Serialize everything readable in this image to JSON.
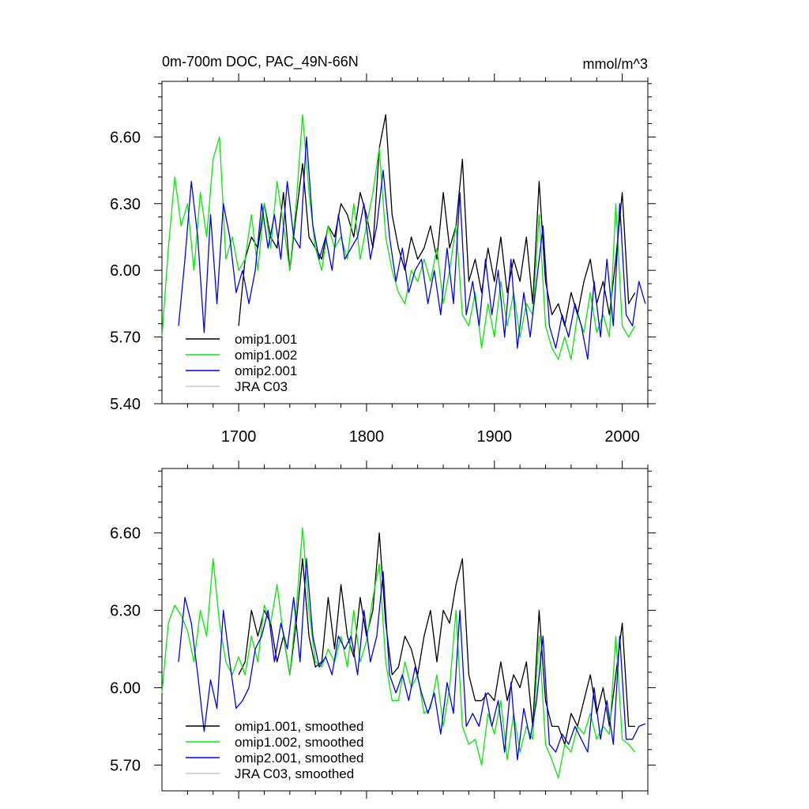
{
  "chart_data": [
    {
      "type": "line",
      "title": "0m-700m DOC, PAC_49N-66N",
      "units": "mmol/m^3",
      "xlabel": "",
      "ylabel": "",
      "xlim": [
        1640,
        2020
      ],
      "ylim": [
        5.4,
        6.85
      ],
      "x_ticks": [
        1700,
        1800,
        1900,
        2000
      ],
      "x_tick_labels": [
        "1700",
        "1800",
        "1900",
        "2000"
      ],
      "y_ticks": [
        5.4,
        5.7,
        6.0,
        6.3,
        6.6
      ],
      "y_tick_labels": [
        "5.40",
        "5.70",
        "6.00",
        "6.30",
        "6.60"
      ],
      "legend_position": "bottom-left",
      "series": [
        {
          "name": "omip1.001",
          "color": "#000000",
          "x": [
            1700,
            1705,
            1710,
            1715,
            1720,
            1725,
            1730,
            1735,
            1740,
            1745,
            1750,
            1755,
            1760,
            1765,
            1770,
            1775,
            1780,
            1785,
            1790,
            1795,
            1800,
            1805,
            1810,
            1815,
            1820,
            1825,
            1830,
            1835,
            1840,
            1845,
            1850,
            1855,
            1860,
            1865,
            1870,
            1875,
            1880,
            1885,
            1890,
            1895,
            1900,
            1905,
            1910,
            1915,
            1920,
            1925,
            1930,
            1935,
            1940,
            1945,
            1950,
            1955,
            1960,
            1965,
            1970,
            1975,
            1980,
            1985,
            1990,
            1995,
            2000,
            2005,
            2010
          ],
          "values": [
            5.75,
            6.05,
            6.15,
            6.1,
            6.3,
            6.15,
            6.1,
            6.35,
            6.0,
            6.25,
            6.48,
            6.15,
            6.1,
            6.05,
            6.2,
            6.15,
            6.3,
            6.25,
            6.15,
            6.35,
            6.25,
            6.1,
            6.55,
            6.7,
            6.25,
            6.1,
            6.0,
            6.15,
            6.05,
            6.1,
            6.2,
            6.05,
            6.35,
            6.1,
            6.2,
            6.5,
            5.95,
            6.05,
            5.9,
            6.1,
            5.95,
            6.15,
            5.9,
            6.05,
            5.95,
            6.15,
            5.85,
            6.4,
            5.95,
            5.8,
            5.85,
            5.75,
            5.9,
            5.8,
            5.95,
            6.05,
            5.85,
            5.95,
            5.8,
            6.05,
            6.35,
            5.85,
            5.9
          ]
        },
        {
          "name": "omip1.002",
          "color": "#00ee00",
          "x": [
            1640,
            1645,
            1650,
            1655,
            1660,
            1665,
            1670,
            1675,
            1680,
            1685,
            1690,
            1695,
            1700,
            1705,
            1710,
            1715,
            1720,
            1725,
            1730,
            1735,
            1740,
            1745,
            1750,
            1755,
            1760,
            1765,
            1770,
            1775,
            1780,
            1785,
            1790,
            1795,
            1800,
            1805,
            1810,
            1815,
            1820,
            1825,
            1830,
            1835,
            1840,
            1845,
            1850,
            1855,
            1860,
            1865,
            1870,
            1875,
            1880,
            1885,
            1890,
            1895,
            1900,
            1905,
            1910,
            1915,
            1920,
            1925,
            1930,
            1935,
            1940,
            1945,
            1950,
            1955,
            1960,
            1965,
            1970,
            1975,
            1980,
            1985,
            1990,
            1995,
            2000,
            2005,
            2010
          ],
          "values": [
            5.7,
            6.1,
            6.42,
            6.2,
            6.3,
            6.0,
            6.35,
            6.15,
            6.5,
            6.6,
            6.05,
            6.15,
            6.0,
            6.05,
            6.25,
            6.0,
            6.3,
            6.1,
            6.4,
            6.2,
            6.0,
            6.3,
            6.7,
            6.35,
            6.1,
            6.0,
            6.2,
            6.1,
            6.15,
            6.05,
            6.3,
            6.05,
            6.2,
            6.35,
            6.55,
            6.15,
            6.0,
            5.9,
            5.85,
            6.0,
            5.95,
            6.05,
            5.95,
            6.1,
            5.85,
            6.0,
            6.2,
            5.8,
            5.75,
            5.9,
            5.65,
            5.85,
            5.7,
            5.95,
            5.75,
            5.9,
            5.7,
            5.85,
            5.8,
            6.25,
            5.75,
            5.65,
            5.6,
            5.7,
            5.6,
            5.8,
            5.72,
            5.9,
            5.72,
            5.8,
            5.7,
            6.3,
            5.75,
            5.7,
            5.75
          ]
        },
        {
          "name": "omip2.001",
          "color": "#0000ff",
          "x": [
            1653,
            1658,
            1663,
            1668,
            1673,
            1678,
            1683,
            1688,
            1693,
            1698,
            1703,
            1708,
            1713,
            1718,
            1723,
            1728,
            1733,
            1738,
            1743,
            1748,
            1753,
            1758,
            1763,
            1768,
            1773,
            1778,
            1783,
            1788,
            1793,
            1798,
            1803,
            1808,
            1813,
            1818,
            1823,
            1828,
            1833,
            1838,
            1843,
            1848,
            1853,
            1858,
            1863,
            1868,
            1873,
            1878,
            1883,
            1888,
            1893,
            1898,
            1903,
            1908,
            1913,
            1918,
            1923,
            1928,
            1933,
            1938,
            1943,
            1948,
            1953,
            1958,
            1963,
            1968,
            1973,
            1978,
            1983,
            1988,
            1993,
            1998,
            2003,
            2008,
            2013,
            2018
          ],
          "values": [
            5.75,
            6.05,
            6.4,
            6.15,
            5.72,
            6.25,
            5.85,
            6.3,
            6.15,
            5.9,
            6.0,
            5.85,
            6.0,
            6.3,
            6.1,
            6.25,
            6.05,
            6.4,
            6.15,
            6.1,
            6.6,
            6.2,
            6.05,
            6.15,
            6.0,
            6.25,
            6.05,
            6.1,
            6.15,
            6.3,
            6.05,
            6.2,
            6.45,
            6.15,
            5.95,
            6.1,
            5.9,
            6.0,
            6.05,
            5.85,
            6.0,
            5.8,
            6.1,
            5.85,
            6.35,
            5.8,
            5.95,
            5.75,
            6.05,
            5.8,
            6.0,
            5.7,
            6.05,
            5.65,
            5.9,
            5.7,
            5.95,
            6.2,
            5.75,
            5.65,
            5.8,
            5.7,
            5.85,
            5.75,
            5.6,
            5.95,
            5.7,
            6.05,
            5.75,
            6.3,
            5.8,
            5.75,
            5.95,
            5.85
          ]
        },
        {
          "name": "JRA C03",
          "color": "#c8c8c8",
          "x": [],
          "values": []
        }
      ]
    },
    {
      "type": "line",
      "title": "",
      "xlabel": "",
      "ylabel": "",
      "xlim": [
        1640,
        2020
      ],
      "ylim": [
        5.6,
        6.85
      ],
      "x_ticks": [
        1700,
        1800,
        1900,
        2000
      ],
      "x_tick_labels": [],
      "y_ticks": [
        5.7,
        6.0,
        6.3,
        6.6
      ],
      "y_tick_labels": [
        "5.70",
        "6.00",
        "6.30",
        "6.60"
      ],
      "legend_position": "bottom-left",
      "series": [
        {
          "name": "omip1.001, smoothed",
          "color": "#000000",
          "x": [
            1700,
            1705,
            1710,
            1715,
            1720,
            1725,
            1730,
            1735,
            1740,
            1745,
            1750,
            1755,
            1760,
            1765,
            1770,
            1775,
            1780,
            1785,
            1790,
            1795,
            1800,
            1805,
            1810,
            1815,
            1820,
            1825,
            1830,
            1835,
            1840,
            1845,
            1850,
            1855,
            1860,
            1865,
            1870,
            1875,
            1880,
            1885,
            1890,
            1895,
            1900,
            1905,
            1910,
            1915,
            1920,
            1925,
            1930,
            1935,
            1940,
            1945,
            1950,
            1955,
            1960,
            1965,
            1970,
            1975,
            1980,
            1985,
            1990,
            1995,
            2000,
            2005,
            2010
          ],
          "values": [
            6.05,
            6.1,
            6.3,
            6.2,
            6.3,
            6.25,
            6.1,
            6.2,
            6.05,
            6.25,
            6.5,
            6.2,
            6.08,
            6.1,
            6.35,
            6.15,
            6.4,
            6.2,
            6.12,
            6.35,
            6.2,
            6.3,
            6.6,
            6.25,
            6.05,
            6.08,
            6.2,
            6.15,
            6.05,
            6.2,
            6.3,
            6.1,
            6.3,
            6.25,
            6.4,
            6.5,
            6.05,
            5.95,
            5.95,
            5.98,
            5.95,
            6.1,
            5.95,
            6.05,
            6.0,
            6.1,
            5.85,
            6.3,
            5.95,
            5.85,
            5.85,
            5.78,
            5.9,
            5.85,
            5.95,
            6.05,
            5.9,
            6.0,
            5.85,
            6.05,
            6.25,
            5.85,
            5.85
          ]
        },
        {
          "name": "omip1.002, smoothed",
          "color": "#00ee00",
          "x": [
            1640,
            1645,
            1650,
            1655,
            1660,
            1665,
            1670,
            1675,
            1680,
            1685,
            1690,
            1695,
            1700,
            1705,
            1710,
            1715,
            1720,
            1725,
            1730,
            1735,
            1740,
            1745,
            1750,
            1755,
            1760,
            1765,
            1770,
            1775,
            1780,
            1785,
            1790,
            1795,
            1800,
            1805,
            1810,
            1815,
            1820,
            1825,
            1830,
            1835,
            1840,
            1845,
            1850,
            1855,
            1860,
            1865,
            1870,
            1875,
            1880,
            1885,
            1890,
            1895,
            1900,
            1905,
            1910,
            1915,
            1920,
            1925,
            1930,
            1935,
            1940,
            1945,
            1950,
            1955,
            1960,
            1965,
            1970,
            1975,
            1980,
            1985,
            1990,
            1995,
            2000,
            2005,
            2010
          ],
          "values": [
            5.98,
            6.25,
            6.32,
            6.28,
            6.22,
            6.1,
            6.3,
            6.2,
            6.5,
            6.25,
            6.1,
            6.05,
            6.12,
            6.05,
            6.2,
            6.1,
            6.32,
            6.25,
            6.4,
            6.2,
            6.05,
            6.3,
            6.62,
            6.3,
            6.1,
            6.08,
            6.15,
            6.1,
            6.2,
            6.08,
            6.3,
            6.1,
            6.18,
            6.35,
            6.48,
            6.1,
            5.95,
            5.95,
            6.1,
            6.0,
            6.05,
            5.9,
            5.92,
            6.05,
            5.85,
            6.0,
            6.3,
            5.85,
            5.78,
            5.8,
            5.7,
            5.9,
            5.82,
            5.95,
            5.72,
            5.9,
            5.75,
            5.85,
            5.8,
            6.2,
            5.78,
            5.72,
            5.65,
            5.78,
            5.75,
            5.85,
            5.82,
            5.9,
            5.8,
            5.85,
            5.82,
            6.2,
            5.8,
            5.78,
            5.75
          ]
        },
        {
          "name": "omip2.001, smoothed",
          "color": "#0000ff",
          "x": [
            1653,
            1658,
            1663,
            1668,
            1673,
            1678,
            1683,
            1688,
            1693,
            1698,
            1703,
            1708,
            1713,
            1718,
            1723,
            1728,
            1733,
            1738,
            1743,
            1748,
            1753,
            1758,
            1763,
            1768,
            1773,
            1778,
            1783,
            1788,
            1793,
            1798,
            1803,
            1808,
            1813,
            1818,
            1823,
            1828,
            1833,
            1838,
            1843,
            1848,
            1853,
            1858,
            1863,
            1868,
            1873,
            1878,
            1883,
            1888,
            1893,
            1898,
            1903,
            1908,
            1913,
            1918,
            1923,
            1928,
            1933,
            1938,
            1943,
            1948,
            1953,
            1958,
            1963,
            1968,
            1973,
            1978,
            1983,
            1988,
            1993,
            1998,
            2003,
            2008,
            2013,
            2018
          ],
          "values": [
            6.1,
            6.35,
            6.25,
            6.05,
            5.83,
            6.03,
            5.92,
            6.3,
            6.1,
            5.92,
            5.95,
            6.0,
            6.15,
            6.2,
            6.3,
            6.1,
            6.25,
            6.15,
            6.35,
            6.1,
            6.5,
            6.2,
            6.08,
            6.12,
            6.05,
            6.2,
            6.15,
            6.2,
            6.05,
            6.3,
            6.1,
            6.2,
            6.45,
            6.05,
            5.98,
            6.05,
            5.95,
            6.08,
            5.98,
            5.9,
            5.98,
            5.82,
            6.02,
            5.9,
            6.3,
            5.85,
            5.9,
            5.85,
            5.98,
            5.85,
            5.95,
            5.75,
            6.02,
            5.72,
            5.92,
            5.8,
            5.95,
            6.2,
            5.78,
            5.75,
            5.82,
            5.78,
            5.85,
            5.8,
            5.75,
            6.0,
            5.8,
            5.95,
            5.78,
            6.2,
            5.8,
            5.8,
            5.85,
            5.86
          ]
        },
        {
          "name": "JRA C03, smoothed",
          "color": "#c8c8c8",
          "x": [],
          "values": []
        }
      ]
    }
  ]
}
